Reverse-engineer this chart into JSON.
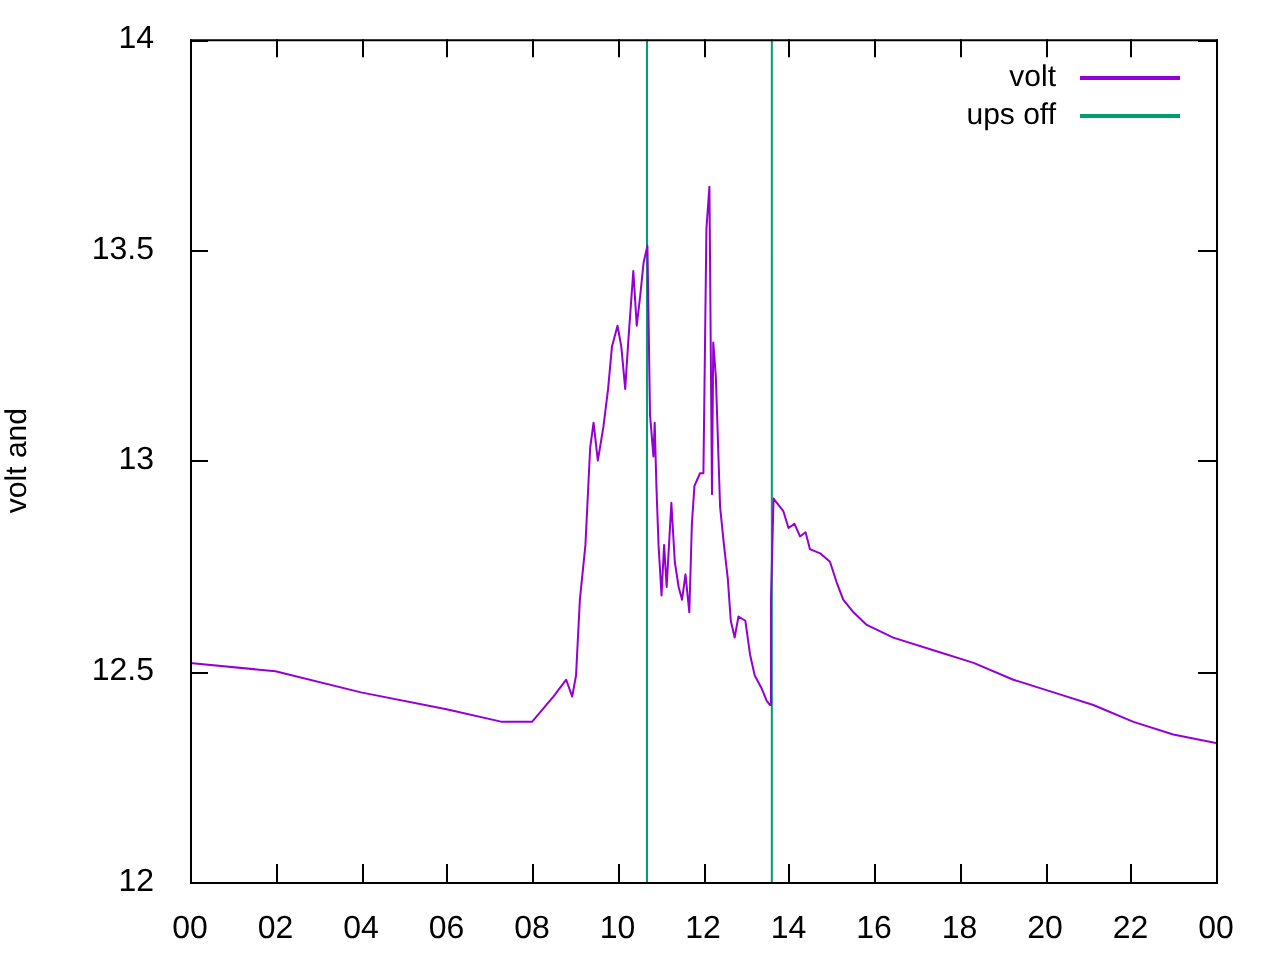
{
  "chart_data": {
    "type": "line",
    "ylabel": "volt and",
    "legend": "top right",
    "marker": "none",
    "grid": false,
    "xlim": [
      0,
      24
    ],
    "xticks": [
      {
        "value": 0,
        "label": "00"
      },
      {
        "value": 2,
        "label": "02"
      },
      {
        "value": 4,
        "label": "04"
      },
      {
        "value": 6,
        "label": "06"
      },
      {
        "value": 8,
        "label": "08"
      },
      {
        "value": 10,
        "label": "10"
      },
      {
        "value": 12,
        "label": "12"
      },
      {
        "value": 14,
        "label": "14"
      },
      {
        "value": 16,
        "label": "16"
      },
      {
        "value": 18,
        "label": "18"
      },
      {
        "value": 20,
        "label": "20"
      },
      {
        "value": 22,
        "label": "22"
      },
      {
        "value": 24,
        "label": "00"
      }
    ],
    "ylim": [
      12,
      14
    ],
    "yticks": [
      12,
      12.5,
      13,
      13.5,
      14
    ],
    "series": [
      {
        "name": "volt",
        "color": "#9400d3",
        "x": [
          0,
          2,
          4,
          6,
          7.3,
          8,
          8.5,
          8.8,
          8.94,
          9.03,
          9.12,
          9.25,
          9.36,
          9.44,
          9.54,
          9.67,
          9.78,
          9.87,
          10,
          10.09,
          10.18,
          10.25,
          10.37,
          10.45,
          10.53,
          10.61,
          10.7,
          10.76,
          10.84,
          10.87,
          10.91,
          10.96,
          11.03,
          11.09,
          11.15,
          11.26,
          11.34,
          11.43,
          11.51,
          11.59,
          11.68,
          11.74,
          11.8,
          11.93,
          12.01,
          12.08,
          12.15,
          12.21,
          12.24,
          12.3,
          12.4,
          12.49,
          12.58,
          12.65,
          12.74,
          12.83,
          12.99,
          13.1,
          13.21,
          13.37,
          13.49,
          13.57,
          13.59,
          13.65,
          13.88,
          14,
          14.14,
          14.27,
          14.4,
          14.5,
          14.74,
          14.97,
          15.13,
          15.28,
          15.52,
          15.83,
          16.45,
          17.39,
          18.33,
          19.26,
          20.2,
          21.13,
          22.07,
          23,
          24
        ],
        "values": [
          12.52,
          12.5,
          12.45,
          12.41,
          12.38,
          12.38,
          12.44,
          12.48,
          12.44,
          12.49,
          12.67,
          12.8,
          13.03,
          13.09,
          13,
          13.08,
          13.17,
          13.27,
          13.32,
          13.27,
          13.17,
          13.28,
          13.45,
          13.32,
          13.39,
          13.47,
          13.51,
          13.11,
          13.01,
          13.09,
          12.94,
          12.8,
          12.68,
          12.8,
          12.7,
          12.9,
          12.76,
          12.7,
          12.67,
          12.73,
          12.64,
          12.85,
          12.94,
          12.97,
          12.97,
          13.55,
          13.65,
          12.92,
          13.28,
          13.2,
          12.89,
          12.8,
          12.72,
          12.62,
          12.58,
          12.63,
          12.62,
          12.54,
          12.49,
          12.46,
          12.43,
          12.42,
          12.67,
          12.91,
          12.88,
          12.84,
          12.85,
          12.82,
          12.83,
          12.79,
          12.78,
          12.76,
          12.71,
          12.67,
          12.64,
          12.61,
          12.58,
          12.55,
          12.52,
          12.48,
          12.45,
          12.42,
          12.38,
          12.35,
          12.33
        ]
      },
      {
        "name": "ups off",
        "color": "#009e73",
        "x": [
          10.69,
          10.69,
          null,
          13.61,
          13.61
        ],
        "values": [
          12,
          14,
          null,
          14,
          12
        ]
      }
    ]
  }
}
